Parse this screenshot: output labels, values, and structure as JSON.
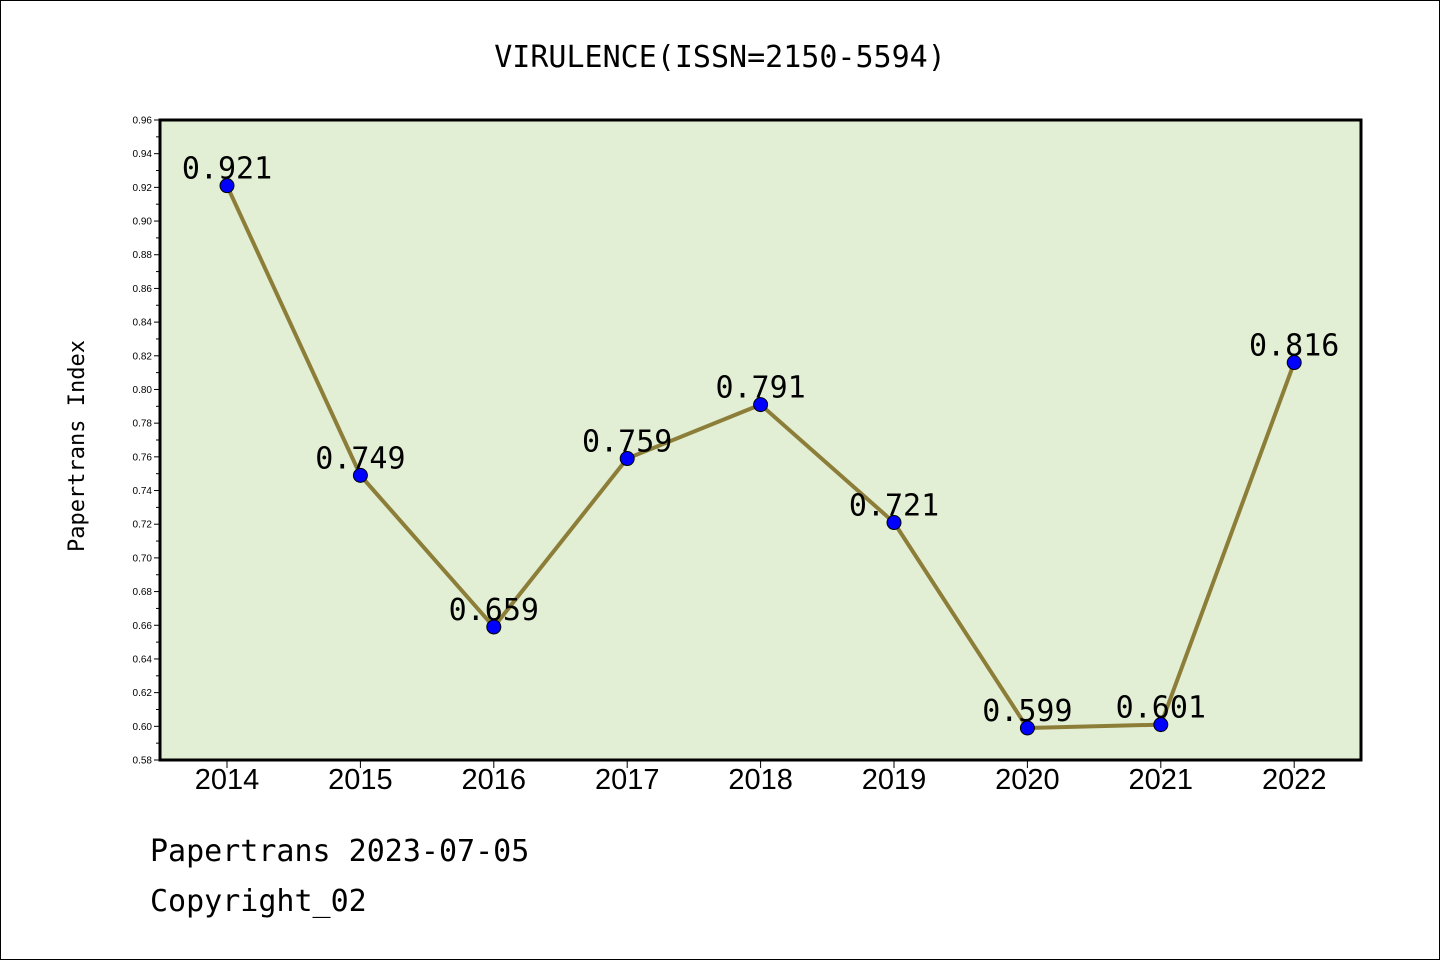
{
  "footer": {
    "line1": "Papertrans 2023-07-05",
    "line2": "Copyright_02"
  },
  "colors": {
    "plot_background": "#e2efd4",
    "line": "#8c7e38",
    "marker": "#0000ff",
    "frame": "#000000"
  },
  "chart_data": {
    "type": "line",
    "title": "VIRULENCE(ISSN=2150-5594)",
    "xlabel": "",
    "ylabel": "Papertrans Index",
    "categories": [
      "2014",
      "2015",
      "2016",
      "2017",
      "2018",
      "2019",
      "2020",
      "2021",
      "2022"
    ],
    "series": [
      {
        "values": [
          0.921,
          0.749,
          0.659,
          0.759,
          0.791,
          0.721,
          0.599,
          0.601,
          0.816
        ],
        "labels": [
          "0.921",
          "0.749",
          "0.659",
          "0.759",
          "0.791",
          "0.721",
          "0.599",
          "0.601",
          "0.816"
        ]
      }
    ],
    "ylim": [
      0.58,
      0.96
    ],
    "yticks": [
      "0.58",
      "0.60",
      "0.62",
      "0.64",
      "0.66",
      "0.68",
      "0.70",
      "0.72",
      "0.74",
      "0.76",
      "0.78",
      "0.80",
      "0.82",
      "0.84",
      "0.86",
      "0.88",
      "0.90",
      "0.92",
      "0.94",
      "0.96"
    ],
    "grid": false,
    "legend": "none"
  }
}
